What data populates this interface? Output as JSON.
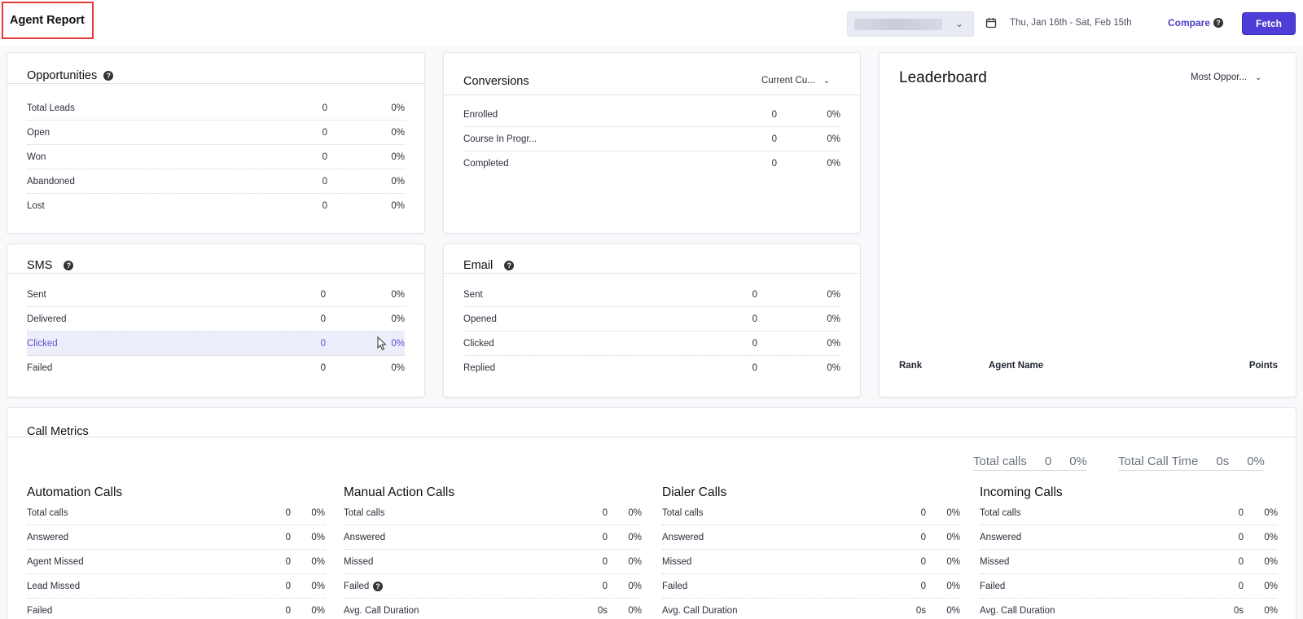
{
  "header": {
    "title": "Agent Report",
    "date_range": "Thu, Jan 16th - Sat, Feb 15th",
    "compare_label": "Compare",
    "fetch_label": "Fetch"
  },
  "opportunities": {
    "title": "Opportunities",
    "rows": [
      {
        "label": "Total Leads",
        "value": "0",
        "pct": "0%"
      },
      {
        "label": "Open",
        "value": "0",
        "pct": "0%"
      },
      {
        "label": "Won",
        "value": "0",
        "pct": "0%"
      },
      {
        "label": "Abandoned",
        "value": "0",
        "pct": "0%"
      },
      {
        "label": "Lost",
        "value": "0",
        "pct": "0%"
      }
    ]
  },
  "conversions": {
    "title": "Conversions",
    "dropdown": "Current Cu...",
    "rows": [
      {
        "label": "Enrolled",
        "value": "0",
        "pct": "0%"
      },
      {
        "label": "Course In Progr...",
        "value": "0",
        "pct": "0%"
      },
      {
        "label": "Completed",
        "value": "0",
        "pct": "0%"
      }
    ]
  },
  "leaderboard": {
    "title": "Leaderboard",
    "dropdown": "Most Oppor...",
    "columns": [
      "Rank",
      "Agent Name",
      "Points"
    ]
  },
  "sms": {
    "title": "SMS",
    "rows": [
      {
        "label": "Sent",
        "value": "0",
        "pct": "0%"
      },
      {
        "label": "Delivered",
        "value": "0",
        "pct": "0%"
      },
      {
        "label": "Clicked",
        "value": "0",
        "pct": "0%"
      },
      {
        "label": "Failed",
        "value": "0",
        "pct": "0%"
      }
    ]
  },
  "email": {
    "title": "Email",
    "rows": [
      {
        "label": "Sent",
        "value": "0",
        "pct": "0%"
      },
      {
        "label": "Opened",
        "value": "0",
        "pct": "0%"
      },
      {
        "label": "Clicked",
        "value": "0",
        "pct": "0%"
      },
      {
        "label": "Replied",
        "value": "0",
        "pct": "0%"
      }
    ]
  },
  "call_metrics": {
    "title": "Call Metrics",
    "total_calls": {
      "label": "Total calls",
      "value": "0",
      "pct": "0%"
    },
    "total_call_time": {
      "label": "Total Call Time",
      "value": "0s",
      "pct": "0%"
    },
    "sections": [
      {
        "title": "Automation Calls",
        "rows": [
          {
            "label": "Total calls",
            "value": "0",
            "pct": "0%"
          },
          {
            "label": "Answered",
            "value": "0",
            "pct": "0%"
          },
          {
            "label": "Agent Missed",
            "value": "0",
            "pct": "0%"
          },
          {
            "label": "Lead Missed",
            "value": "0",
            "pct": "0%"
          },
          {
            "label": "Failed",
            "value": "0",
            "pct": "0%"
          }
        ]
      },
      {
        "title": "Manual Action Calls",
        "rows": [
          {
            "label": "Total calls",
            "value": "0",
            "pct": "0%"
          },
          {
            "label": "Answered",
            "value": "0",
            "pct": "0%"
          },
          {
            "label": "Missed",
            "value": "0",
            "pct": "0%"
          },
          {
            "label": "Failed",
            "value": "0",
            "pct": "0%"
          },
          {
            "label": "Avg. Call Duration",
            "value": "0s",
            "pct": "0%"
          }
        ]
      },
      {
        "title": "Dialer Calls",
        "rows": [
          {
            "label": "Total calls",
            "value": "0",
            "pct": "0%"
          },
          {
            "label": "Answered",
            "value": "0",
            "pct": "0%"
          },
          {
            "label": "Missed",
            "value": "0",
            "pct": "0%"
          },
          {
            "label": "Failed",
            "value": "0",
            "pct": "0%"
          },
          {
            "label": "Avg. Call Duration",
            "value": "0s",
            "pct": "0%"
          }
        ]
      },
      {
        "title": "Incoming Calls",
        "rows": [
          {
            "label": "Total calls",
            "value": "0",
            "pct": "0%"
          },
          {
            "label": "Answered",
            "value": "0",
            "pct": "0%"
          },
          {
            "label": "Missed",
            "value": "0",
            "pct": "0%"
          },
          {
            "label": "Failed",
            "value": "0",
            "pct": "0%"
          },
          {
            "label": "Avg. Call Duration",
            "value": "0s",
            "pct": "0%"
          }
        ]
      }
    ]
  },
  "colors": {
    "accent": "#4e3dd6",
    "highlight_row": "#eceefb",
    "title_outline": "#e33a3a"
  },
  "icons": [
    "chevron-down-icon",
    "calendar-icon",
    "help-icon",
    "mouse-cursor-icon"
  ]
}
